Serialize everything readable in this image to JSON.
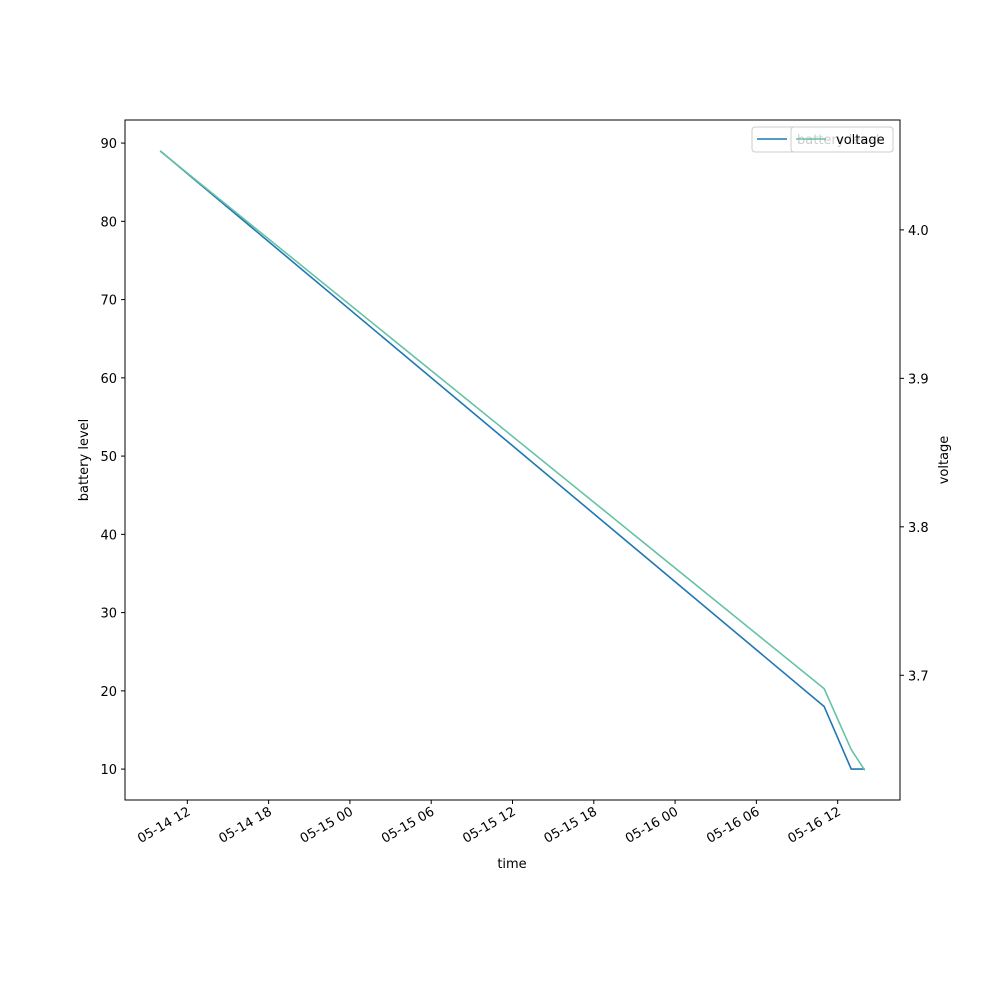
{
  "chart_data": {
    "type": "line",
    "x": [
      "05-14 10:00",
      "05-16 11:00",
      "05-16 13:00",
      "05-16 14:00"
    ],
    "xlabel": "time",
    "ylabel": "battery level",
    "y2label": "voltage",
    "series": [
      {
        "name": "battery level",
        "color": "#1f77b4",
        "values": [
          89,
          18,
          10,
          10
        ]
      },
      {
        "name": "voltage",
        "color": "#66c2a5",
        "axis": "y2",
        "values": [
          4.053,
          3.691,
          3.65,
          3.636
        ]
      }
    ],
    "xlim": [
      "05-14 07:24",
      "05-16 16:36"
    ],
    "xticks": [
      "05-14 12",
      "05-14 18",
      "05-15 00",
      "05-15 06",
      "05-15 12",
      "05-15 18",
      "05-16 00",
      "05-16 06",
      "05-16 12"
    ],
    "ylim": [
      6.05,
      92.95
    ],
    "yticks": [
      10,
      20,
      30,
      40,
      50,
      60,
      70,
      80,
      90
    ],
    "y2lim": [
      3.616,
      4.074
    ],
    "y2ticks": [
      3.7,
      3.8,
      3.9,
      {
        "value": 4,
        "label": "4.0"
      }
    ],
    "legend": "upper right"
  }
}
